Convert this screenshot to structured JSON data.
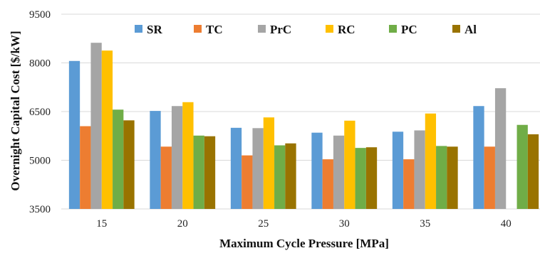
{
  "chart_data": {
    "type": "bar",
    "title": "",
    "xlabel": "Maximum Cycle Pressure [MPa]",
    "ylabel": "Overnight Capital Cost [$/kW]",
    "categories": [
      "15",
      "20",
      "25",
      "30",
      "35",
      "40"
    ],
    "ylim": [
      3500,
      9500
    ],
    "yticks": [
      "3500",
      "5000",
      "6500",
      "8000",
      "9500"
    ],
    "grid": true,
    "legend_position": "top",
    "series": [
      {
        "name": "SR",
        "color": "#5B9BD5",
        "values": [
          8060,
          6520,
          6000,
          5850,
          5880,
          6670
        ]
      },
      {
        "name": "TC",
        "color": "#ED7D31",
        "values": [
          6050,
          5420,
          5150,
          5030,
          5030,
          5420
        ]
      },
      {
        "name": "PrC",
        "color": "#A5A5A5",
        "values": [
          8620,
          6670,
          5990,
          5760,
          5920,
          7220
        ]
      },
      {
        "name": "RC",
        "color": "#FFC000",
        "values": [
          8380,
          6790,
          6320,
          6220,
          6440,
          null
        ]
      },
      {
        "name": "PC",
        "color": "#70AD47",
        "values": [
          6560,
          5760,
          5460,
          5380,
          5440,
          6090
        ]
      },
      {
        "name": "Al",
        "color": "#997300",
        "values": [
          6230,
          5740,
          5520,
          5400,
          5420,
          5800
        ]
      }
    ]
  }
}
